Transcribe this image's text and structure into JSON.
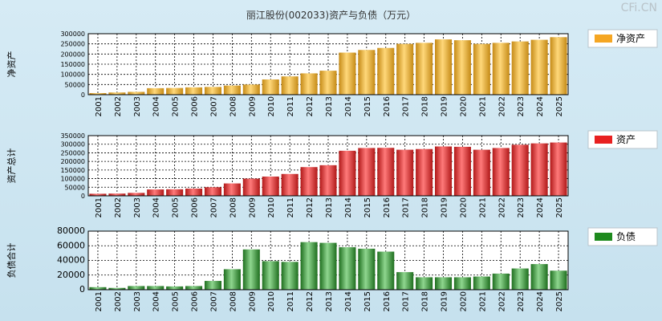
{
  "title": "丽江股份(002033)资产与负债（万元）",
  "watermark": "CFi.CN",
  "chart_data": [
    {
      "type": "bar",
      "ylabel": "净资产",
      "legend": "净资产",
      "color": "#f5a623",
      "ylim": [
        0,
        300000
      ],
      "yticks": [
        0,
        50000,
        100000,
        150000,
        200000,
        250000,
        300000
      ],
      "categories": [
        "2001",
        "2002",
        "2003",
        "2004",
        "2005",
        "2006",
        "2007",
        "2008",
        "2009",
        "2010",
        "2011",
        "2012",
        "2013",
        "2014",
        "2015",
        "2016",
        "2017",
        "2018",
        "2019",
        "2020",
        "2021",
        "2022",
        "2023",
        "2024",
        "2025"
      ],
      "values": [
        8000,
        11000,
        14000,
        32000,
        33000,
        36000,
        38000,
        45000,
        50000,
        75000,
        90000,
        105000,
        118000,
        207000,
        220000,
        230000,
        250000,
        255000,
        272000,
        268000,
        250000,
        255000,
        262000,
        270000,
        283000
      ]
    },
    {
      "type": "bar",
      "ylabel": "资产总计",
      "legend": "资产",
      "color": "#e82020",
      "ylim": [
        0,
        350000
      ],
      "yticks": [
        0,
        50000,
        100000,
        150000,
        200000,
        250000,
        300000,
        350000
      ],
      "categories": [
        "2001",
        "2002",
        "2003",
        "2004",
        "2005",
        "2006",
        "2007",
        "2008",
        "2009",
        "2010",
        "2011",
        "2012",
        "2013",
        "2014",
        "2015",
        "2016",
        "2017",
        "2018",
        "2019",
        "2020",
        "2021",
        "2022",
        "2023",
        "2024",
        "2025"
      ],
      "values": [
        12000,
        13000,
        17000,
        37000,
        38000,
        42000,
        50000,
        72000,
        100000,
        112000,
        127000,
        167000,
        178000,
        262000,
        278000,
        279000,
        268000,
        272000,
        287000,
        285000,
        268000,
        278000,
        297000,
        305000,
        310000
      ]
    },
    {
      "type": "bar",
      "ylabel": "负债合计",
      "legend": "负债",
      "color": "#1e8a1e",
      "ylim": [
        0,
        80000
      ],
      "yticks": [
        0,
        20000,
        40000,
        60000,
        80000
      ],
      "categories": [
        "2001",
        "2002",
        "2003",
        "2004",
        "2005",
        "2006",
        "2007",
        "2008",
        "2009",
        "2010",
        "2011",
        "2012",
        "2013",
        "2014",
        "2015",
        "2016",
        "2017",
        "2018",
        "2019",
        "2020",
        "2021",
        "2022",
        "2023",
        "2024",
        "2025"
      ],
      "values": [
        3500,
        2500,
        5000,
        5000,
        4500,
        5000,
        12000,
        28000,
        55000,
        39000,
        38000,
        65000,
        64000,
        58000,
        56000,
        52000,
        24000,
        17000,
        17000,
        17000,
        18000,
        22000,
        29000,
        35000,
        26000
      ]
    }
  ]
}
